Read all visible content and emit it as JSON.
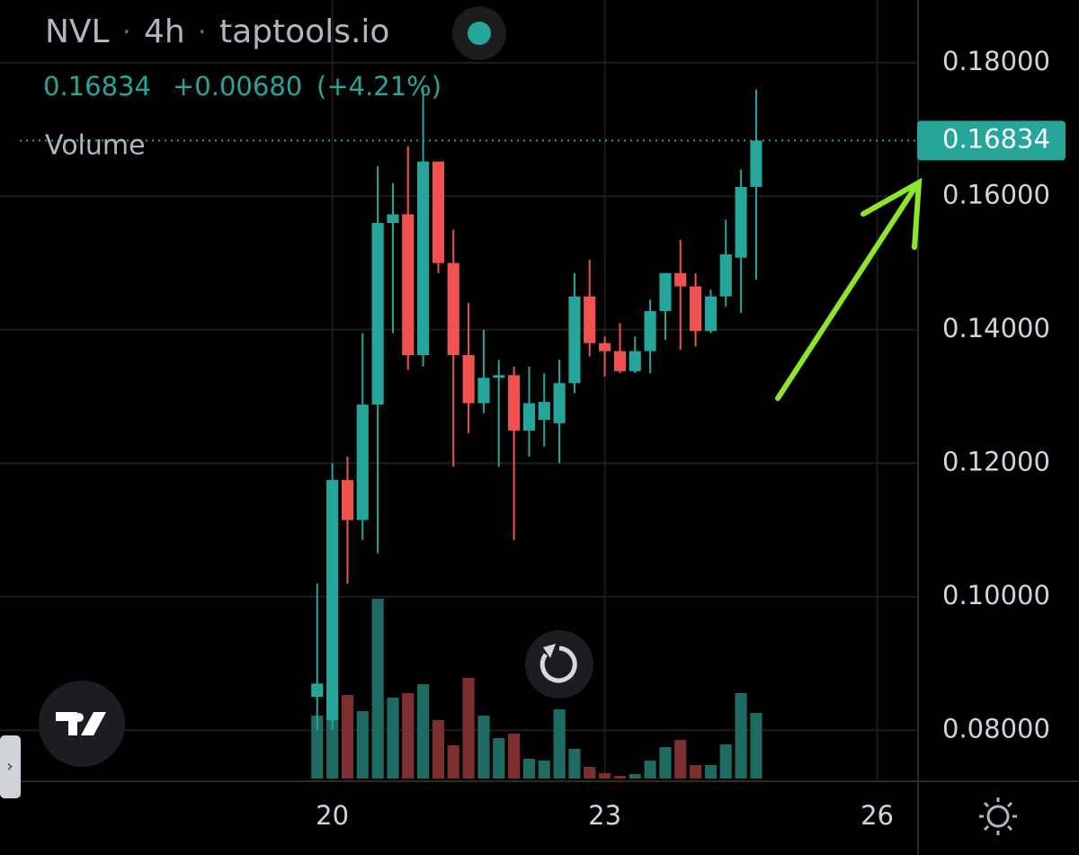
{
  "header": {
    "symbol": "NVL",
    "interval": "4h",
    "source": "taptools.io",
    "price": "0.16834",
    "change": "+0.00680",
    "change_pct": "(+4.21%)",
    "volume_label": "Volume",
    "last_price_label": "0.16834"
  },
  "chart_data": {
    "type": "candlestick",
    "x": [
      19.833,
      20.0,
      20.167,
      20.333,
      20.5,
      20.667,
      20.833,
      21.0,
      21.167,
      21.333,
      21.5,
      21.667,
      21.833,
      22.0,
      22.167,
      22.333,
      22.5,
      22.667,
      22.833,
      23.0,
      23.167,
      23.333,
      23.5,
      23.667,
      23.833,
      24.0,
      24.167,
      24.333,
      24.5,
      24.667
    ],
    "open": [
      0.085,
      0.0815,
      0.1175,
      0.1115,
      0.1288,
      0.156,
      0.1573,
      0.1362,
      0.1652,
      0.15,
      0.1362,
      0.129,
      0.1328,
      0.1332,
      0.1249,
      0.1265,
      0.126,
      0.132,
      0.145,
      0.138,
      0.1368,
      0.1338,
      0.1368,
      0.1428,
      0.1485,
      0.1465,
      0.1398,
      0.145,
      0.1508,
      0.1614
    ],
    "high": [
      0.102,
      0.12,
      0.121,
      0.1395,
      0.1645,
      0.162,
      0.1675,
      0.176,
      0.165,
      0.155,
      0.144,
      0.14,
      0.1355,
      0.1345,
      0.1345,
      0.1335,
      0.1355,
      0.1485,
      0.1505,
      0.139,
      0.141,
      0.139,
      0.1445,
      0.1485,
      0.1535,
      0.1485,
      0.146,
      0.1565,
      0.164,
      0.176
    ],
    "low": [
      0.08,
      0.08,
      0.102,
      0.1085,
      0.1065,
      0.1395,
      0.134,
      0.1345,
      0.1485,
      0.1195,
      0.1245,
      0.1275,
      0.1195,
      0.1085,
      0.121,
      0.1225,
      0.12,
      0.1305,
      0.136,
      0.133,
      0.1335,
      0.1335,
      0.1335,
      0.1385,
      0.137,
      0.1375,
      0.1395,
      0.1435,
      0.1425,
      0.1475
    ],
    "close": [
      0.087,
      0.1175,
      0.1115,
      0.1288,
      0.156,
      0.1573,
      0.1362,
      0.1652,
      0.15,
      0.1362,
      0.129,
      0.1328,
      0.1332,
      0.1249,
      0.129,
      0.1292,
      0.132,
      0.145,
      0.138,
      0.1368,
      0.1338,
      0.1368,
      0.1428,
      0.1485,
      0.1465,
      0.1398,
      0.145,
      0.1513,
      0.1614,
      0.16834
    ],
    "volume": [
      70,
      100,
      93,
      75,
      200,
      90,
      95,
      105,
      65,
      37,
      112,
      70,
      45,
      50,
      22,
      20,
      77,
      33,
      13,
      6,
      3,
      5,
      20,
      35,
      43,
      15,
      15,
      38,
      95,
      73
    ],
    "volume_lim": [
      0,
      250
    ],
    "up_color": "#26a69a",
    "down_color": "#ef5350",
    "volume_up_color": "#1f6b63",
    "volume_down_color": "#7d2e2e",
    "xlim": [
      16.34,
      26.44
    ],
    "xticks": [
      20,
      23,
      26
    ],
    "ylim": [
      0.0725,
      0.1894
    ],
    "yticks": [
      {
        "value": 0.18,
        "label": "0.18000"
      },
      {
        "value": 0.16,
        "label": "0.16000"
      },
      {
        "value": 0.14,
        "label": "0.14000"
      },
      {
        "value": 0.12,
        "label": "0.12000"
      },
      {
        "value": 0.1,
        "label": "0.10000"
      },
      {
        "value": 0.08,
        "label": "0.08000"
      }
    ],
    "grid": true
  }
}
